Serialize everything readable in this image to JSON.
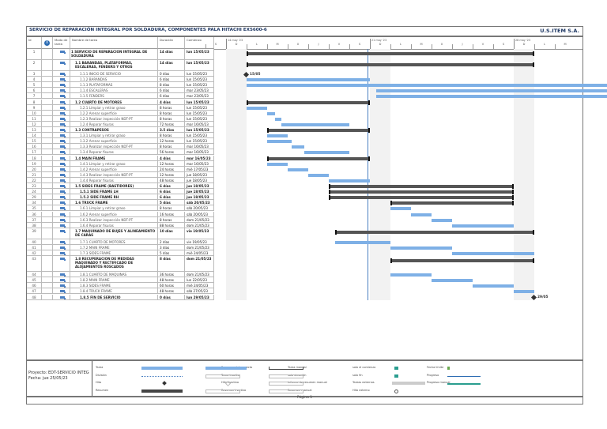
{
  "header": {
    "title": "SERVICIO DE REPARACIÓN INTEGRAL POR SOLDADURA, COMPONENTES PALA HITACHI EX5600-6",
    "company": "U.S.ITEM S.A."
  },
  "columns": {
    "id": "Id",
    "mode": "Modo de tarea",
    "name": "Nombre de tarea",
    "duration": "Duración",
    "start": "Comienzo"
  },
  "timeline": {
    "weeks": [
      "14 may '23",
      "21 may '23",
      "28 may '23"
    ],
    "days": [
      "S",
      "D",
      "L",
      "M",
      "X",
      "J",
      "V",
      "S",
      "D",
      "L",
      "M",
      "X",
      "J",
      "V",
      "S",
      "D",
      "L",
      "M"
    ]
  },
  "tasks": [
    {
      "id": "1",
      "name": "1 SERVICIO DE REPARACION INTEGRAL DE SOLDADURA",
      "duration": "14 días",
      "start": "lun 15/05/23",
      "level": "summary",
      "tall": true
    },
    {
      "id": "2",
      "name": "1.1 BARANDAS, PLATAFORMAS, ESCALERAS, FENDERS Y OTROS",
      "duration": "14 días",
      "start": "lun 15/05/23",
      "level": "summary",
      "tall": true
    },
    {
      "id": "3",
      "name": "1.1.1 INICIO DE SERVICIO",
      "duration": "0 días",
      "start": "lun 15/05/23",
      "level": "task"
    },
    {
      "id": "4",
      "name": "1.1.2 BARANDAS",
      "duration": "6 días",
      "start": "lun 15/05/23",
      "level": "task"
    },
    {
      "id": "5",
      "name": "1.1.3 PLATAFORMAS",
      "duration": "8 días",
      "start": "lun 15/05/23",
      "level": "task"
    },
    {
      "id": "6",
      "name": "1.1.4 ESCALERAS",
      "duration": "6 días",
      "start": "mar 23/05/23",
      "level": "task"
    },
    {
      "id": "7",
      "name": "1.1.5 FENDERS",
      "duration": "6 días",
      "start": "mar 23/05/23",
      "level": "task"
    },
    {
      "id": "8",
      "name": "1.2 CUARTO DE MOTORES",
      "duration": "4 días",
      "start": "lun 15/05/23",
      "level": "summary"
    },
    {
      "id": "9",
      "name": "1.2.1 Limpiar y retirar graso",
      "duration": "8 horas",
      "start": "lun 15/05/23",
      "level": "task"
    },
    {
      "id": "10",
      "name": "1.2.2 Arenar superficie",
      "duration": "8 horas",
      "start": "lun 15/05/23",
      "level": "task"
    },
    {
      "id": "11",
      "name": "1.2.3 Realizar inspección NDT-PT",
      "duration": "8 horas",
      "start": "lun 15/05/23",
      "level": "task"
    },
    {
      "id": "12",
      "name": "1.2.4 Reparar fisuras",
      "duration": "72 horas",
      "start": "mar 16/05/23",
      "level": "task"
    },
    {
      "id": "13",
      "name": "1.3 CONTRAPESOS",
      "duration": "3.5 días",
      "start": "lun 15/05/23",
      "level": "summary"
    },
    {
      "id": "14",
      "name": "1.3.1 Limpiar y retirar graso",
      "duration": "8 horas",
      "start": "lun 15/05/23",
      "level": "task"
    },
    {
      "id": "15",
      "name": "1.3.2 Arenar superficie",
      "duration": "12 horas",
      "start": "lun 15/05/23",
      "level": "task"
    },
    {
      "id": "16",
      "name": "1.3.3 Realizar inspección NDT-PT",
      "duration": "8 horas",
      "start": "mar 16/05/23",
      "level": "task"
    },
    {
      "id": "17",
      "name": "1.3.4 Reparar fisuras",
      "duration": "56 horas",
      "start": "mar 16/05/23",
      "level": "task"
    },
    {
      "id": "18",
      "name": "1.4 MAIN FRAME",
      "duration": "4 días",
      "start": "mar 16/05/23",
      "level": "summary"
    },
    {
      "id": "19",
      "name": "1.4.1 Limpiar y retirar graso",
      "duration": "12 horas",
      "start": "mar 16/05/23",
      "level": "task"
    },
    {
      "id": "20",
      "name": "1.4.2 Arenar superficie",
      "duration": "24 horas",
      "start": "mié 17/05/23",
      "level": "task"
    },
    {
      "id": "21",
      "name": "1.4.3 Realizar inspección NDT-PT",
      "duration": "12 horas",
      "start": "jue 18/05/23",
      "level": "task"
    },
    {
      "id": "22",
      "name": "1.4.4 Reparar fisuras",
      "duration": "48 horas",
      "start": "jue 18/05/23",
      "level": "task"
    },
    {
      "id": "23",
      "name": "1.5 SIDES FRAME (BASTIDORES)",
      "duration": "6 días",
      "start": "jue 18/05/23",
      "level": "summary"
    },
    {
      "id": "24",
      "name": "1.5.1 SIDE FRAME LH",
      "duration": "6 días",
      "start": "jue 18/05/23",
      "level": "subsummary"
    },
    {
      "id": "29",
      "name": "1.5.2 SIDE FRAME RH",
      "duration": "6 días",
      "start": "jue 18/05/23",
      "level": "subsummary"
    },
    {
      "id": "34",
      "name": "1.6 TRUCK FRAME",
      "duration": "5 días",
      "start": "sáb 20/05/23",
      "level": "summary"
    },
    {
      "id": "35",
      "name": "1.6.1 Limpiar y retirar graso",
      "duration": "8 horas",
      "start": "sáb 20/05/23",
      "level": "task"
    },
    {
      "id": "36",
      "name": "1.6.2 Arenar superficie",
      "duration": "16 horas",
      "start": "sáb 20/05/23",
      "level": "task"
    },
    {
      "id": "37",
      "name": "1.6.3 Realizar inspección NDT-PT",
      "duration": "8 horas",
      "start": "dom 21/05/23",
      "level": "task"
    },
    {
      "id": "38",
      "name": "1.6.4 Reparar fisuras",
      "duration": "88 horas",
      "start": "dom 21/05/23",
      "level": "task"
    },
    {
      "id": "39",
      "name": "1.7 MAQUINADO DE BUJES Y ALINEAMIENTO DE CARAS",
      "duration": "10 días",
      "start": "vie 19/05/23",
      "level": "summary",
      "tall": true
    },
    {
      "id": "40",
      "name": "1.7.1 CUARTO DE MOTORES",
      "duration": "2 días",
      "start": "vie 19/05/23",
      "level": "task"
    },
    {
      "id": "41",
      "name": "1.7.2 MAIN FRAME",
      "duration": "3 días",
      "start": "dom 21/05/23",
      "level": "task"
    },
    {
      "id": "42",
      "name": "1.7.3 SIDES FRAME",
      "duration": "5 días",
      "start": "mié 24/05/23",
      "level": "task"
    },
    {
      "id": "43",
      "name": "1.8 RECUPERACION DE MEDIDAS MAQUINADO Y RECTIFICADO DE ALOJAMIENTOS ROSCADOS",
      "duration": "8 días",
      "start": "dom 21/05/23",
      "level": "summary",
      "xtall": true
    },
    {
      "id": "44",
      "name": "1.8.1 CUARTO DE MAQUINAS",
      "duration": "36 horas",
      "start": "dom 21/05/23",
      "level": "task"
    },
    {
      "id": "45",
      "name": "1.8.2 MAIN FRAME",
      "duration": "48 horas",
      "start": "lun 22/05/23",
      "level": "task"
    },
    {
      "id": "46",
      "name": "1.8.3 SIDES FRAME",
      "duration": "60 horas",
      "start": "mié 24/05/23",
      "level": "task"
    },
    {
      "id": "47",
      "name": "1.8.4 TRUCK FRAME",
      "duration": "48 horas",
      "start": "sáb 27/05/23",
      "level": "task"
    },
    {
      "id": "48",
      "name": "1.8.5 FIN DE SERVICIO",
      "duration": "0 días",
      "start": "lun 29/05/23",
      "level": "subsummary"
    }
  ],
  "milestones": {
    "start_label": "15/05",
    "end_label": "29/05"
  },
  "legend": {
    "project": "Proyecto: EDT-SERVICIO INTEG",
    "date": "Fecha: jue 25/05/23",
    "items": [
      [
        "Tarea",
        "Resumen del proyecto",
        "Tarea manual",
        "solo el comienzo",
        "Fecha límite"
      ],
      [
        "División",
        "Tarea inactiva",
        "solo duración",
        "solo fin",
        "Progreso"
      ],
      [
        "Hito",
        "Hito inactivo",
        "Informe de resumen manual",
        "Tareas externas",
        "Progreso manual"
      ],
      [
        "Resumen",
        "Resumen inactivo",
        "Resumen manual",
        "Hito externo",
        ""
      ]
    ]
  },
  "footer": {
    "page": "Página 1"
  },
  "colors": {
    "task": "#7eb0e6",
    "summary": "#555555",
    "link": "#4a7fc1",
    "title": "#1f3864"
  }
}
